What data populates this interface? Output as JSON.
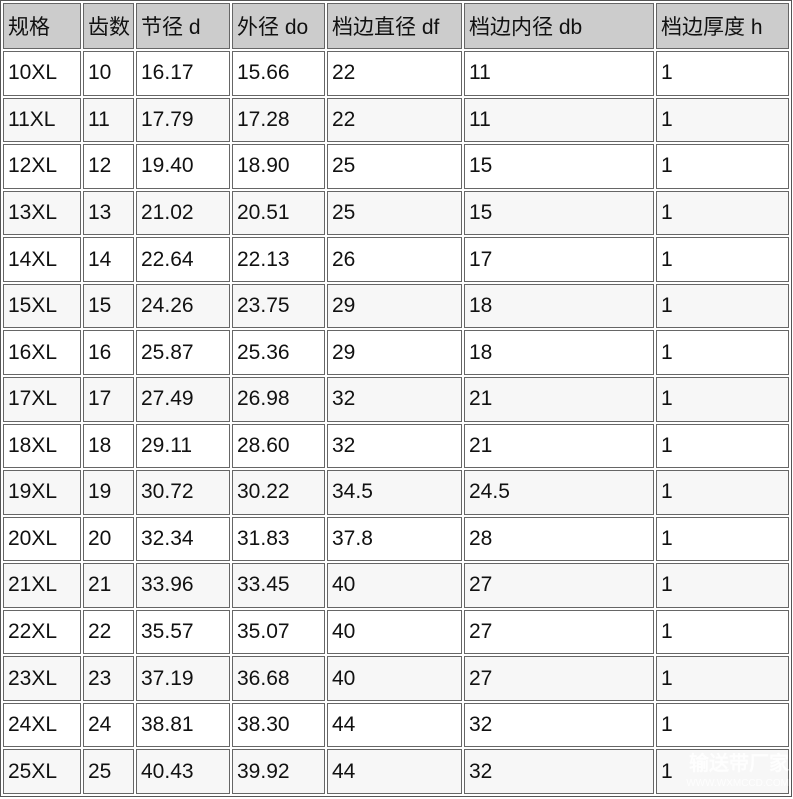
{
  "table": {
    "headers": [
      "规格",
      "齿数",
      "节径 d",
      "外径 do",
      "档边直径 df",
      "档边内径 db",
      "档边厚度 h"
    ],
    "rows": [
      [
        "10XL",
        "10",
        "16.17",
        "15.66",
        "22",
        "11",
        "1"
      ],
      [
        "11XL",
        "11",
        "17.79",
        "17.28",
        "22",
        "11",
        "1"
      ],
      [
        "12XL",
        "12",
        "19.40",
        "18.90",
        "25",
        "15",
        "1"
      ],
      [
        "13XL",
        "13",
        "21.02",
        "20.51",
        "25",
        "15",
        "1"
      ],
      [
        "14XL",
        "14",
        "22.64",
        "22.13",
        "26",
        "17",
        "1"
      ],
      [
        "15XL",
        "15",
        "24.26",
        "23.75",
        "29",
        "18",
        "1"
      ],
      [
        "16XL",
        "16",
        "25.87",
        "25.36",
        "29",
        "18",
        "1"
      ],
      [
        "17XL",
        "17",
        "27.49",
        "26.98",
        "32",
        "21",
        "1"
      ],
      [
        "18XL",
        "18",
        "29.11",
        "28.60",
        "32",
        "21",
        "1"
      ],
      [
        "19XL",
        "19",
        "30.72",
        "30.22",
        "34.5",
        "24.5",
        "1"
      ],
      [
        "20XL",
        "20",
        "32.34",
        "31.83",
        "37.8",
        "28",
        "1"
      ],
      [
        "21XL",
        "21",
        "33.96",
        "33.45",
        "40",
        "27",
        "1"
      ],
      [
        "22XL",
        "22",
        "35.57",
        "35.07",
        "40",
        "27",
        "1"
      ],
      [
        "23XL",
        "23",
        "37.19",
        "36.68",
        "40",
        "27",
        "1"
      ],
      [
        "24XL",
        "24",
        "38.81",
        "38.30",
        "44",
        "32",
        "1"
      ],
      [
        "25XL",
        "25",
        "40.43",
        "39.92",
        "44",
        "32",
        "1"
      ]
    ]
  },
  "watermark": {
    "logo": "ms",
    "name": "输送带厂家",
    "url": "WWW.WXMCCD.COM"
  },
  "colors": {
    "header_bg": "#cccccc",
    "row_alt_bg": "#f7f7f7",
    "border": "#666666"
  }
}
